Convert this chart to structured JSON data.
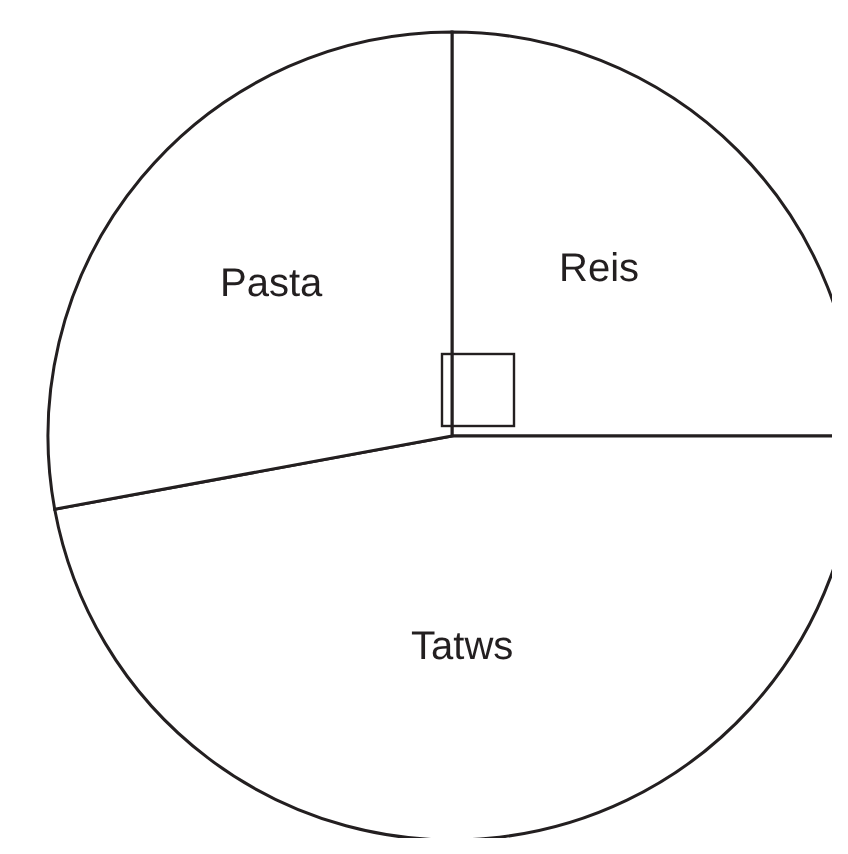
{
  "chart_data": {
    "type": "pie",
    "categories": [
      "Reis",
      "Tatws",
      "Pasta"
    ],
    "values": [
      25,
      47.1,
      27.9
    ],
    "colors": [
      "#ffffff",
      "#ffffff",
      "#ffffff"
    ]
  }
}
